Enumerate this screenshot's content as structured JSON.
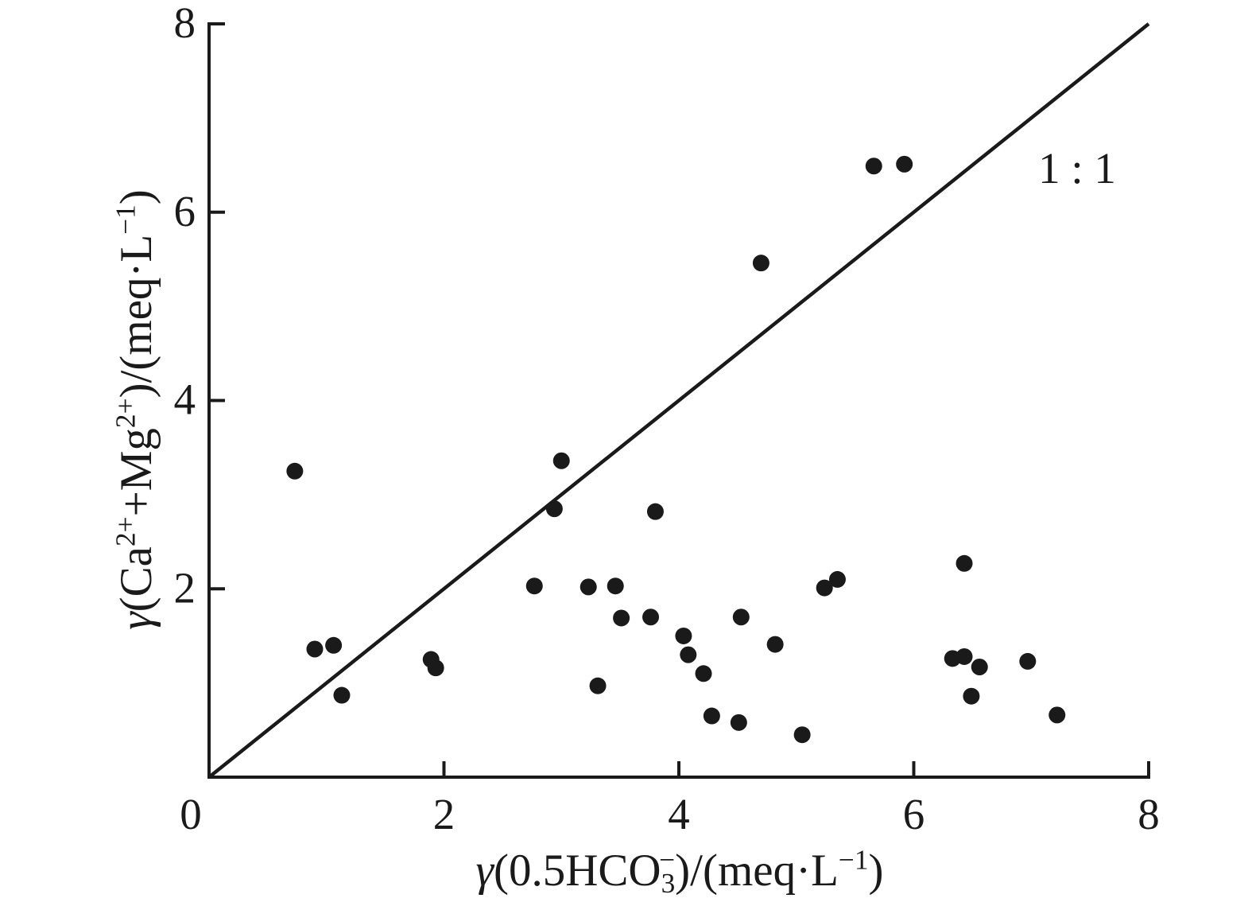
{
  "figure": {
    "background": "#ffffff",
    "ink_color": "#1a1a1a"
  },
  "chart_data": {
    "type": "scatter",
    "title": "",
    "xlabel": "γ(0.5HCO₃⁻)/(meq·L⁻¹)",
    "ylabel": "γ(Ca²⁺+Mg²⁺)/(meq·L⁻¹)",
    "xlim": [
      0,
      8
    ],
    "ylim": [
      0,
      8
    ],
    "grid": false,
    "x_ticks": [
      2,
      4,
      6,
      8
    ],
    "y_ticks": [
      2,
      4,
      6,
      8
    ],
    "origin_label": "0",
    "reference_line": {
      "label": "1 : 1",
      "from": [
        0,
        0
      ],
      "to": [
        8,
        8
      ]
    },
    "points": [
      [
        0.73,
        3.25
      ],
      [
        0.9,
        1.36
      ],
      [
        1.06,
        1.4
      ],
      [
        1.13,
        0.87
      ],
      [
        1.89,
        1.25
      ],
      [
        1.93,
        1.16
      ],
      [
        2.77,
        2.03
      ],
      [
        2.94,
        2.85
      ],
      [
        3.0,
        3.36
      ],
      [
        3.23,
        2.02
      ],
      [
        3.31,
        0.97
      ],
      [
        3.46,
        2.03
      ],
      [
        3.51,
        1.69
      ],
      [
        3.76,
        1.7
      ],
      [
        3.8,
        2.82
      ],
      [
        4.04,
        1.5
      ],
      [
        4.08,
        1.3
      ],
      [
        4.21,
        1.1
      ],
      [
        4.28,
        0.65
      ],
      [
        4.51,
        0.58
      ],
      [
        4.53,
        1.7
      ],
      [
        4.7,
        5.46
      ],
      [
        4.82,
        1.41
      ],
      [
        5.05,
        0.45
      ],
      [
        5.24,
        2.01
      ],
      [
        5.35,
        2.1
      ],
      [
        5.66,
        6.49
      ],
      [
        5.92,
        6.51
      ],
      [
        6.33,
        1.26
      ],
      [
        6.43,
        2.27
      ],
      [
        6.43,
        1.28
      ],
      [
        6.49,
        0.86
      ],
      [
        6.56,
        1.17
      ],
      [
        6.97,
        1.23
      ],
      [
        7.22,
        0.66
      ]
    ],
    "xlabel_segments": [
      {
        "t": "γ",
        "italic": true
      },
      {
        "t": "(0.5HCO"
      },
      {
        "t": "3",
        "sub": true
      },
      {
        "t": "−",
        "sup": true,
        "dx": -20
      },
      {
        "t": ")/(meq·L"
      },
      {
        "t": "−1",
        "sup": true
      },
      {
        "t": ")"
      }
    ],
    "ylabel_segments": [
      {
        "t": "γ",
        "italic": true
      },
      {
        "t": "(Ca"
      },
      {
        "t": "2+",
        "sup": true
      },
      {
        "t": "+Mg"
      },
      {
        "t": "2+",
        "sup": true
      },
      {
        "t": ")/(meq·L"
      },
      {
        "t": "−1",
        "sup": true
      },
      {
        "t": ")"
      }
    ]
  }
}
